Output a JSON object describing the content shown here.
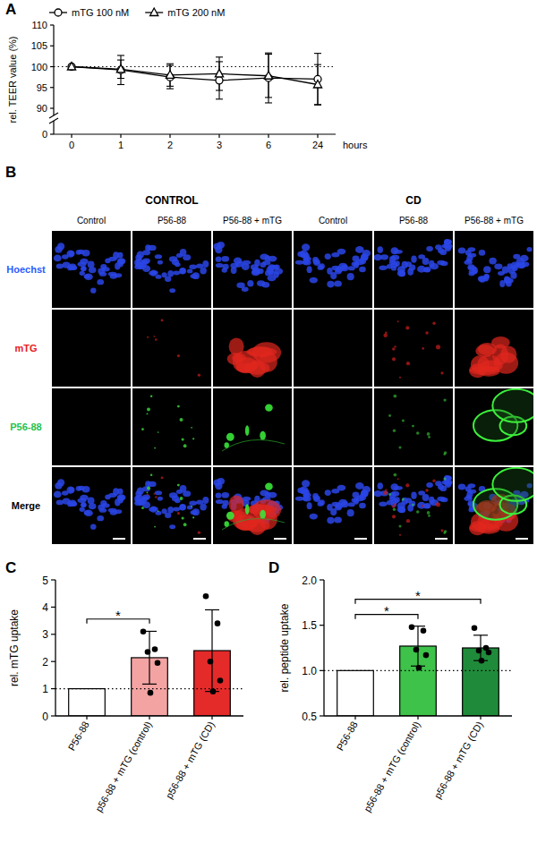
{
  "chart_data": [
    {
      "type": "line",
      "panel_label": "A",
      "y_label": "rel. TEER value (%)",
      "x_label": "hours",
      "categories": [
        "0",
        "1",
        "2",
        "3",
        "6",
        "24"
      ],
      "series": [
        {
          "name": "mTG 100 nM",
          "color": "#000000",
          "marker": "circle",
          "values": [
            100,
            99.2,
            97.5,
            96.7,
            97.3,
            97.0
          ],
          "errors": [
            null,
            3.5,
            2.8,
            4.5,
            6.0,
            6.2
          ]
        },
        {
          "name": "mTG 200 nM",
          "color": "#000000",
          "marker": "triangle",
          "values": [
            100,
            99.4,
            98.0,
            98.3,
            97.8,
            95.7
          ],
          "errors": [
            null,
            2.2,
            2.7,
            4.0,
            5.2,
            4.8
          ]
        }
      ],
      "ylim": [
        0,
        110
      ],
      "yticks": [
        0,
        90,
        95,
        100,
        105,
        110
      ],
      "reference_line": 100,
      "legend": "top-left"
    },
    {
      "type": "bar",
      "panel_label": "C",
      "y_label": "rel. mTG uptake",
      "categories": [
        "P56-88",
        "p56-88 + mTG (control)",
        "p56-88 + mTG (CD)"
      ],
      "values": [
        1,
        2.14,
        2.4
      ],
      "errors": [
        null,
        0.97,
        1.5
      ],
      "points": [
        null,
        [
          3.1,
          2.45,
          2.35,
          1.95,
          0.85
        ],
        [
          4.4,
          3.4,
          2.0,
          1.3,
          0.9
        ]
      ],
      "colors": [
        "#ffffff",
        "#f4a3a3",
        "#e52a2a"
      ],
      "ylim": [
        0,
        5
      ],
      "yticks": [
        0,
        1,
        2,
        3,
        4,
        5
      ],
      "reference_line": 1,
      "significance": [
        {
          "pair": [
            "P56-88",
            "p56-88 + mTG (control)"
          ],
          "label": "*"
        }
      ]
    },
    {
      "type": "bar",
      "panel_label": "D",
      "y_label": "rel. peptide uptake",
      "categories": [
        "P56-88",
        "p56-88 + mTG (control)",
        "p56-88 + mTG (CD)"
      ],
      "values": [
        1,
        1.27,
        1.25
      ],
      "errors": [
        null,
        0.22,
        0.14
      ],
      "points": [
        null,
        [
          1.48,
          1.44,
          1.23,
          1.17,
          1.03
        ],
        [
          1.47,
          1.25,
          1.22,
          1.2,
          1.11
        ]
      ],
      "colors": [
        "#ffffff",
        "#3ec24a",
        "#1f8b3a"
      ],
      "ylim": [
        0.5,
        2
      ],
      "yticks": [
        0.5,
        {
          "value": 1,
          "label": "1.0"
        },
        1.5,
        {
          "value": 2,
          "label": "2.0"
        }
      ],
      "reference_line": 1,
      "significance": [
        {
          "pair": [
            "P56-88",
            "p56-88 + mTG (control)"
          ],
          "label": "*"
        },
        {
          "pair": [
            "P56-88",
            "p56-88 + mTG (CD)"
          ],
          "label": "*"
        }
      ]
    }
  ],
  "image_grid": {
    "panel_label": "B",
    "groups": [
      {
        "title": "CONTROL",
        "columns": [
          "Control",
          "P56-88",
          "P56-88 + mTG"
        ]
      },
      {
        "title": "CD",
        "columns": [
          "Control",
          "P56-88",
          "P56-88 + mTG"
        ]
      }
    ],
    "rows": [
      {
        "label": "Hoechst",
        "color": "#2d5bff"
      },
      {
        "label": "mTG",
        "color": "#e8201a"
      },
      {
        "label": "P56-88",
        "color": "#27c24a"
      },
      {
        "label": "Merge",
        "color": "#000000"
      }
    ]
  }
}
